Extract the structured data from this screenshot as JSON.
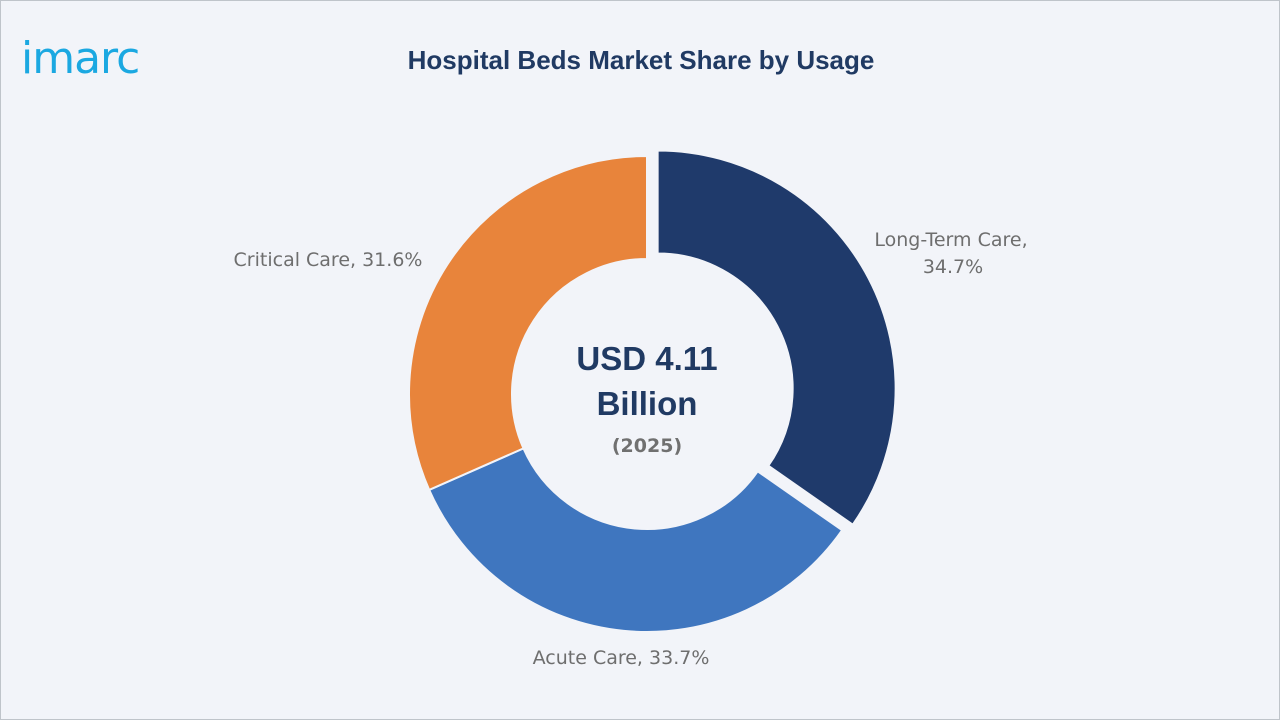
{
  "logo": {
    "text": "imarc"
  },
  "chart_data": {
    "type": "pie",
    "title": "Hospital Beds Market Share by Usage",
    "center": {
      "line1": "USD 4.11",
      "line2": "Billion",
      "line3": "(2025)"
    },
    "categories": [
      "Long-Term Care",
      "Acute Care",
      "Critical Care"
    ],
    "values": [
      34.7,
      33.7,
      31.6
    ],
    "unit": "%",
    "labels": [
      {
        "line1": "Long-Term Care,",
        "line2": "34.7%"
      },
      {
        "line1": "Acute Care, 33.7%"
      },
      {
        "line1": "Critical Care, 31.6%"
      }
    ],
    "colors": [
      "#1f3a6b",
      "#3f76bf",
      "#e8843b"
    ],
    "exploded": "Long-Term Care",
    "legend": "none"
  }
}
